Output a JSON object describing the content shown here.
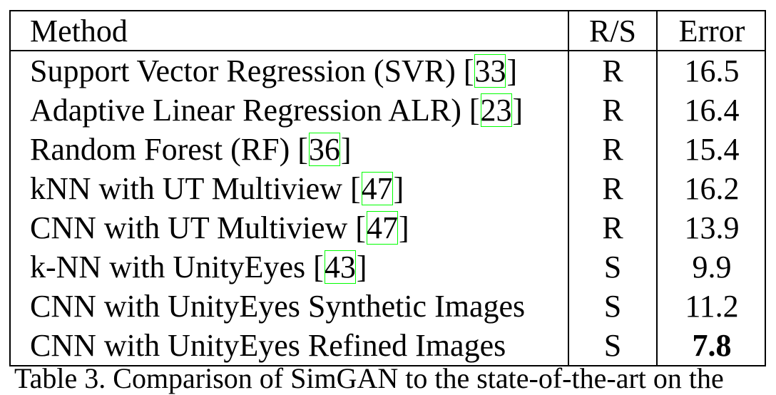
{
  "table": {
    "headers": {
      "method": "Method",
      "rs": "R/S",
      "error": "Error"
    },
    "rows": [
      {
        "method": "Support Vector Regression (SVR) [",
        "cite": "33",
        "close": "]",
        "rs": "R",
        "error": "16.5"
      },
      {
        "method": "Adaptive Linear Regression ALR) [",
        "cite": "23",
        "close": "]",
        "rs": "R",
        "error": "16.4"
      },
      {
        "method": "Random Forest (RF) [",
        "cite": "36",
        "close": "]",
        "rs": "R",
        "error": "15.4"
      },
      {
        "method": "kNN with UT Multiview [",
        "cite": "47",
        "close": "]",
        "rs": "R",
        "error": "16.2"
      },
      {
        "method": "CNN with UT Multiview [",
        "cite": "47",
        "close": "]",
        "rs": "R",
        "error": "13.9"
      },
      {
        "method": "k-NN with UnityEyes [",
        "cite": "43",
        "close": "]",
        "rs": "S",
        "error": "9.9"
      },
      {
        "method": "CNN with UnityEyes Synthetic Images",
        "cite": "",
        "close": "",
        "rs": "S",
        "error": "11.2"
      },
      {
        "method": "CNN with UnityEyes Refined Images",
        "cite": "",
        "close": "",
        "rs": "S",
        "error": "7.8"
      }
    ]
  },
  "caption": "Table 3. Comparison of SimGAN to the state-of-the-art on the",
  "colors": {
    "citation_box": "#00ff00",
    "text": "#000000"
  }
}
